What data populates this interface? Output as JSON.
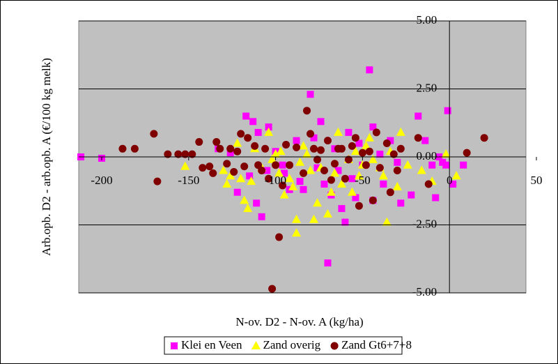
{
  "chart_data": {
    "type": "scatter",
    "x_label": "N-ov. D2 - N-ov. A (kg/ha)",
    "y_label": "Arb.opb. D2 - arb.opb. A (€/100 kg melk)",
    "xlim": [
      -200,
      50
    ],
    "xticks": [
      -200,
      -150,
      -100,
      -50,
      0,
      50
    ],
    "ylim": [
      -5,
      5
    ],
    "yticks": [
      {
        "value": -5,
        "label": "-5.00"
      },
      {
        "value": -2.5,
        "label": "-2.50"
      },
      {
        "value": 0,
        "label": "0.00"
      },
      {
        "value": 2.5,
        "label": "2.50"
      },
      {
        "value": 5,
        "label": "5.00"
      }
    ],
    "grid": true,
    "legend": "bottom",
    "series": [
      {
        "name": "Klei en Veen",
        "color": "#ff00ff",
        "marker": "square",
        "x": [
          -212,
          -200,
          -133,
          -126,
          -122,
          -117,
          -115,
          -113,
          -111,
          -108,
          -104,
          -100,
          -96,
          -92,
          -88,
          -86,
          -84,
          -80,
          -78,
          -76,
          -74,
          -72,
          -70,
          -68,
          -66,
          -64,
          -62,
          -60,
          -58,
          -56,
          -54,
          -52,
          -50,
          -46,
          -44,
          -44,
          -40,
          -38,
          -34,
          -30,
          -28,
          -22,
          -18,
          -14,
          -10,
          -8,
          -6,
          -4,
          -2,
          -1,
          2,
          8,
          -110,
          -95,
          -105
        ],
        "values": [
          0,
          -0.05,
          0.3,
          0.15,
          -1.3,
          1.5,
          -0.7,
          1.3,
          -1.7,
          -2.2,
          1.1,
          0.2,
          -0.3,
          -1.2,
          0.6,
          -0.9,
          -1.2,
          2.3,
          0.7,
          -0.4,
          1.3,
          -1.0,
          -3.9,
          -1.4,
          0.3,
          -0.5,
          -1.9,
          -2.4,
          0.9,
          -0.8,
          -1.5,
          0.5,
          -0.3,
          3.2,
          -1.6,
          1.1,
          0.1,
          -1.0,
          0.6,
          -0.2,
          -1.7,
          -1.4,
          1.5,
          0.6,
          -0.3,
          -1.5,
          0.0,
          -0.2,
          -0.3,
          1.7,
          -1.0,
          -0.3,
          0.9,
          -0.6,
          -0.5
        ]
      },
      {
        "name": "Zand overig",
        "color": "#ffff00",
        "marker": "triangle",
        "x": [
          -152,
          -130,
          -128,
          -126,
          -122,
          -120,
          -118,
          -116,
          -114,
          -112,
          -108,
          -104,
          -102,
          -98,
          -97,
          -95,
          -92,
          -90,
          -88,
          -88,
          -86,
          -84,
          -80,
          -78,
          -76,
          -74,
          -70,
          -68,
          -66,
          -64,
          -62,
          -58,
          -56,
          -54,
          -52,
          -50,
          -48,
          -46,
          -44,
          -40,
          -38,
          -36,
          -34,
          -30,
          -28,
          -24,
          -16,
          -10,
          -2,
          4,
          -100,
          -82
        ],
        "values": [
          -0.35,
          -0.5,
          -1.0,
          -0.7,
          0.5,
          -0.8,
          -1.6,
          -1.9,
          -0.9,
          0.3,
          -0.4,
          0.9,
          -0.1,
          -0.6,
          0.2,
          -1.4,
          -0.8,
          -1.1,
          -2.3,
          -2.8,
          -0.2,
          0.4,
          -0.5,
          -2.3,
          -1.7,
          -0.4,
          -2.1,
          -1.3,
          -0.6,
          0.9,
          -1.0,
          -0.1,
          -1.3,
          0.2,
          -0.7,
          -0.3,
          0.4,
          0.7,
          -0.1,
          -0.4,
          -0.7,
          -2.4,
          0.2,
          -1.1,
          0.9,
          -0.3,
          -0.5,
          -0.9,
          0.1,
          -0.7,
          0.1,
          0.1
        ]
      },
      {
        "name": "Zand Gt6+7+8",
        "color": "#800000",
        "marker": "circle",
        "x": [
          -188,
          -181,
          -170,
          -168,
          -162,
          -156,
          -152,
          -148,
          -144,
          -142,
          -138,
          -136,
          -134,
          -132,
          -128,
          -126,
          -124,
          -122,
          -120,
          -118,
          -116,
          -112,
          -110,
          -108,
          -106,
          -104,
          -102,
          -100,
          -98,
          -96,
          -94,
          -92,
          -88,
          -84,
          -82,
          -80,
          -78,
          -76,
          -74,
          -72,
          -70,
          -68,
          -66,
          -64,
          -62,
          -60,
          -58,
          -56,
          -54,
          -52,
          -50,
          -48,
          -46,
          -44,
          -42,
          -40,
          -36,
          -34,
          -32,
          -30,
          -28,
          -18,
          -12,
          10,
          20
        ],
        "values": [
          0.3,
          0.3,
          0.85,
          -0.9,
          0.1,
          0.1,
          0.1,
          0.1,
          0.55,
          -0.4,
          -0.35,
          -0.6,
          0.55,
          0.3,
          -0.25,
          0.3,
          -0.55,
          0.2,
          0.85,
          -0.35,
          0.7,
          0.4,
          -0.3,
          -0.5,
          0.3,
          -0.8,
          -4.85,
          -0.3,
          -2.95,
          -1.05,
          0.45,
          -0.3,
          0.35,
          -0.6,
          1.7,
          0.85,
          0.3,
          -0.1,
          0.25,
          -0.5,
          0.6,
          -0.85,
          -0.25,
          0.3,
          0.3,
          -0.8,
          -0.1,
          0.4,
          0.7,
          -1.8,
          0.15,
          -0.3,
          0.2,
          -1.6,
          0.9,
          -0.4,
          0.5,
          -1.3,
          0.1,
          -0.5,
          0.3,
          0.7,
          -1.0,
          0.15,
          0.7
        ]
      }
    ]
  }
}
